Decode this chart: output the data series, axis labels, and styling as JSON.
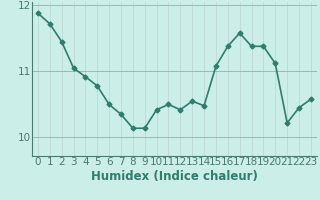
{
  "x": [
    0,
    1,
    2,
    3,
    4,
    5,
    6,
    7,
    8,
    9,
    10,
    11,
    12,
    13,
    14,
    15,
    16,
    17,
    18,
    19,
    20,
    21,
    22,
    23
  ],
  "y": [
    11.88,
    11.72,
    11.45,
    11.05,
    10.92,
    10.78,
    10.5,
    10.35,
    10.14,
    10.14,
    10.42,
    10.5,
    10.42,
    10.55,
    10.48,
    11.08,
    11.38,
    11.58,
    11.38,
    11.38,
    11.12,
    10.22,
    10.45,
    10.58
  ],
  "line_color": "#2e7d6e",
  "marker": "D",
  "marker_size": 2.5,
  "background_color": "#cceee8",
  "grid_color_v": "#c0d8d4",
  "grid_color_h": "#c0a8a8",
  "xlabel": "Humidex (Indice chaleur)",
  "ylim": [
    9.72,
    12.05
  ],
  "xlim": [
    -0.5,
    23.5
  ],
  "yticks": [
    10,
    11,
    12
  ],
  "xticks": [
    0,
    1,
    2,
    3,
    4,
    5,
    6,
    7,
    8,
    9,
    10,
    11,
    12,
    13,
    14,
    15,
    16,
    17,
    18,
    19,
    20,
    21,
    22,
    23
  ],
  "xlabel_fontsize": 8.5,
  "tick_fontsize": 7.5,
  "line_width": 1.2,
  "spine_color": "#4a7a70"
}
